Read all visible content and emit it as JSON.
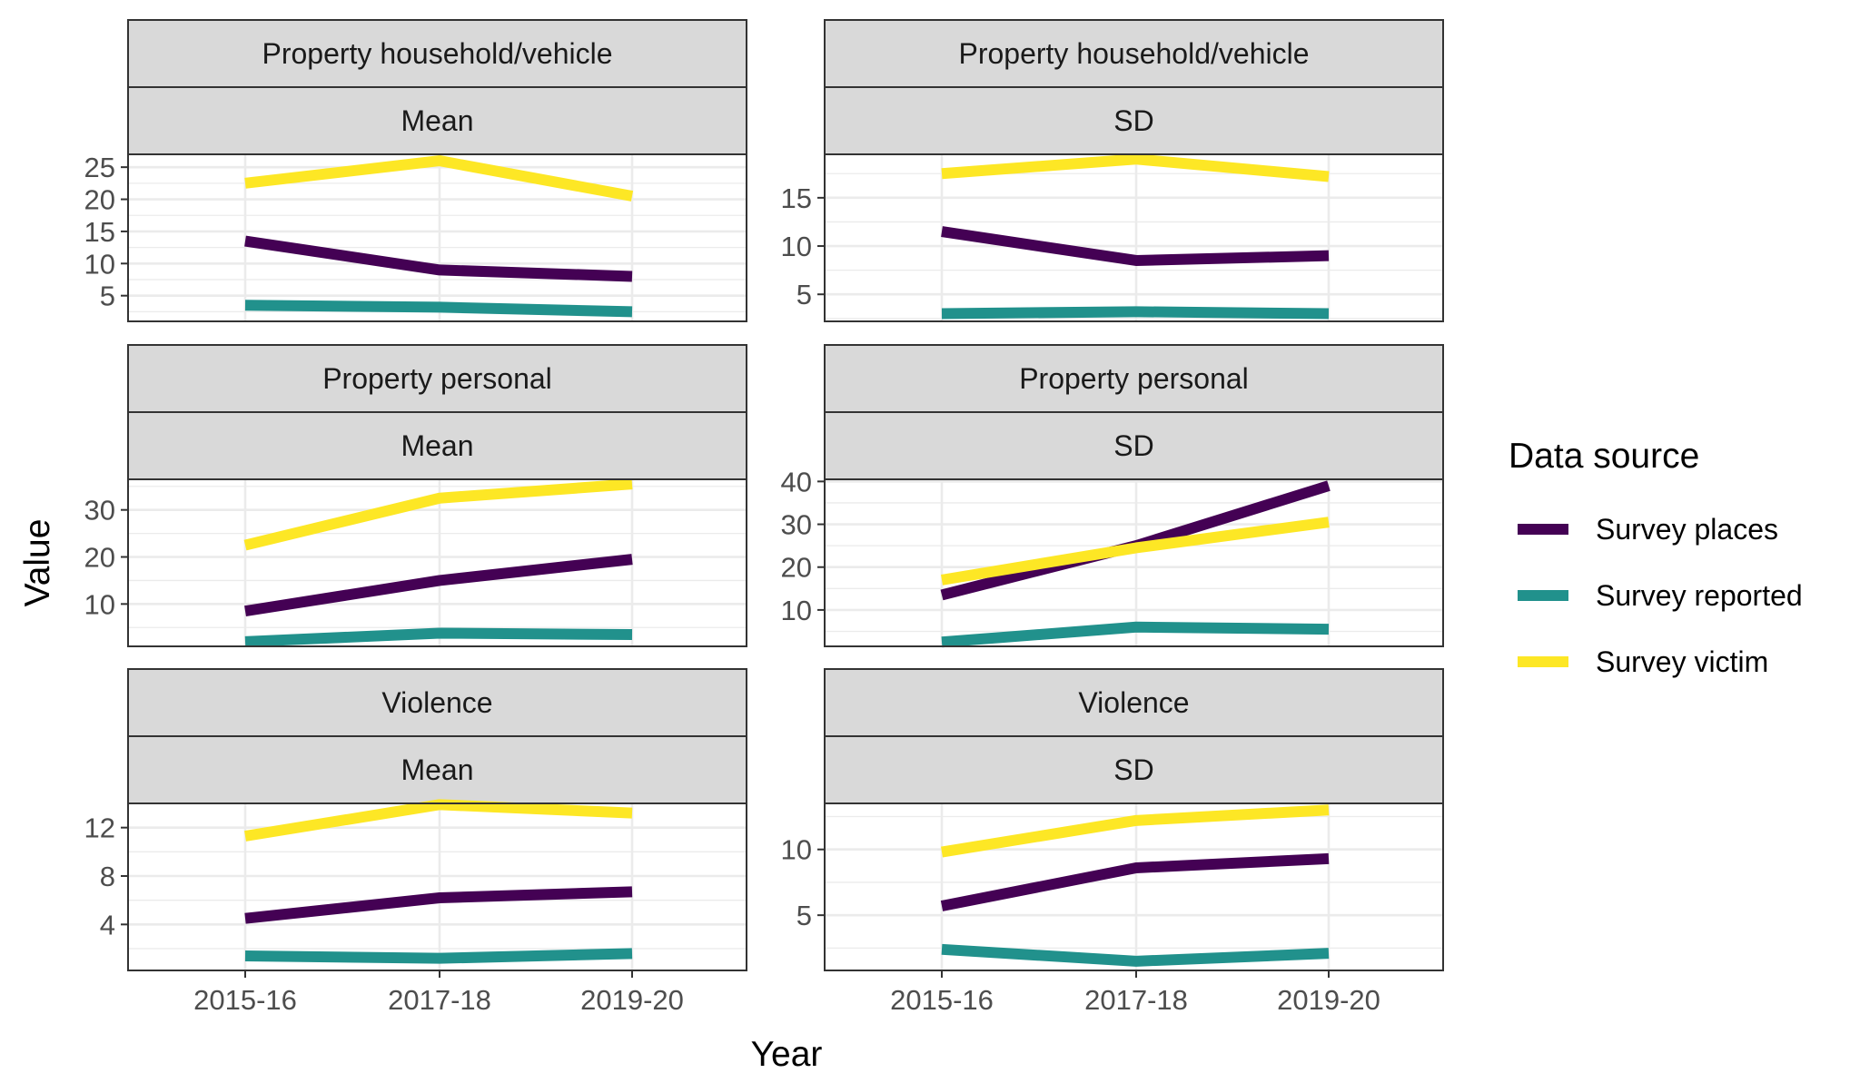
{
  "colors": {
    "survey_places": "#440154",
    "survey_reported": "#21918C",
    "survey_victim": "#FDE725",
    "strip_fill": "#D9D9D9",
    "grid": "#EBEBEB",
    "frame": "#333333"
  },
  "legend": {
    "title": "Data source",
    "items": [
      {
        "label": "Survey places",
        "color_key": "survey_places"
      },
      {
        "label": "Survey reported",
        "color_key": "survey_reported"
      },
      {
        "label": "Survey victim",
        "color_key": "survey_victim"
      }
    ]
  },
  "chart_data": {
    "type": "line",
    "xlabel": "Year",
    "ylabel": "Value",
    "categories": [
      "2015-16",
      "2017-18",
      "2019-20"
    ],
    "legend_position": "right",
    "grid": true,
    "panels": [
      {
        "strip_top": "Property household/vehicle",
        "strip_bottom": "Mean",
        "ylim": [
          1,
          27
        ],
        "yticks": [
          5,
          10,
          15,
          20,
          25
        ],
        "series": [
          {
            "name": "Survey places",
            "color_key": "survey_places",
            "values": [
              13.5,
              9.0,
              8.0
            ]
          },
          {
            "name": "Survey reported",
            "color_key": "survey_reported",
            "values": [
              3.5,
              3.2,
              2.5
            ]
          },
          {
            "name": "Survey victim",
            "color_key": "survey_victim",
            "values": [
              22.5,
              26.0,
              20.5
            ]
          }
        ]
      },
      {
        "strip_top": "Property household/vehicle",
        "strip_bottom": "SD",
        "ylim": [
          2.2,
          19.5
        ],
        "yticks": [
          5,
          10,
          15
        ],
        "series": [
          {
            "name": "Survey places",
            "color_key": "survey_places",
            "values": [
              11.5,
              8.5,
              9.0
            ]
          },
          {
            "name": "Survey reported",
            "color_key": "survey_reported",
            "values": [
              3.0,
              3.2,
              3.0
            ]
          },
          {
            "name": "Survey victim",
            "color_key": "survey_victim",
            "values": [
              17.5,
              19.0,
              17.2
            ]
          }
        ]
      },
      {
        "strip_top": "Property personal",
        "strip_bottom": "Mean",
        "ylim": [
          1,
          36.5
        ],
        "yticks": [
          10,
          20,
          30
        ],
        "series": [
          {
            "name": "Survey places",
            "color_key": "survey_places",
            "values": [
              8.5,
              15.0,
              19.5
            ]
          },
          {
            "name": "Survey reported",
            "color_key": "survey_reported",
            "values": [
              2.0,
              3.8,
              3.5
            ]
          },
          {
            "name": "Survey victim",
            "color_key": "survey_victim",
            "values": [
              22.5,
              32.5,
              35.5
            ]
          }
        ]
      },
      {
        "strip_top": "Property personal",
        "strip_bottom": "SD",
        "ylim": [
          1.5,
          40.5
        ],
        "yticks": [
          10,
          20,
          30,
          40
        ],
        "series": [
          {
            "name": "Survey places",
            "color_key": "survey_places",
            "values": [
              13.5,
              25.0,
              39.0
            ]
          },
          {
            "name": "Survey reported",
            "color_key": "survey_reported",
            "values": [
              2.5,
              6.0,
              5.5
            ]
          },
          {
            "name": "Survey victim",
            "color_key": "survey_victim",
            "values": [
              17.0,
              24.5,
              30.5
            ]
          }
        ]
      },
      {
        "strip_top": "Violence",
        "strip_bottom": "Mean",
        "ylim": [
          0.2,
          14.0
        ],
        "yticks": [
          4,
          8,
          12
        ],
        "series": [
          {
            "name": "Survey places",
            "color_key": "survey_places",
            "values": [
              4.5,
              6.2,
              6.7
            ]
          },
          {
            "name": "Survey reported",
            "color_key": "survey_reported",
            "values": [
              1.4,
              1.2,
              1.6
            ]
          },
          {
            "name": "Survey victim",
            "color_key": "survey_victim",
            "values": [
              11.3,
              13.9,
              13.2
            ]
          }
        ]
      },
      {
        "strip_top": "Violence",
        "strip_bottom": "SD",
        "ylim": [
          0.8,
          13.5
        ],
        "yticks": [
          5,
          10
        ],
        "series": [
          {
            "name": "Survey places",
            "color_key": "survey_places",
            "values": [
              5.7,
              8.6,
              9.3
            ]
          },
          {
            "name": "Survey reported",
            "color_key": "survey_reported",
            "values": [
              2.4,
              1.5,
              2.1
            ]
          },
          {
            "name": "Survey victim",
            "color_key": "survey_victim",
            "values": [
              9.8,
              12.2,
              13.0
            ]
          }
        ]
      }
    ]
  }
}
